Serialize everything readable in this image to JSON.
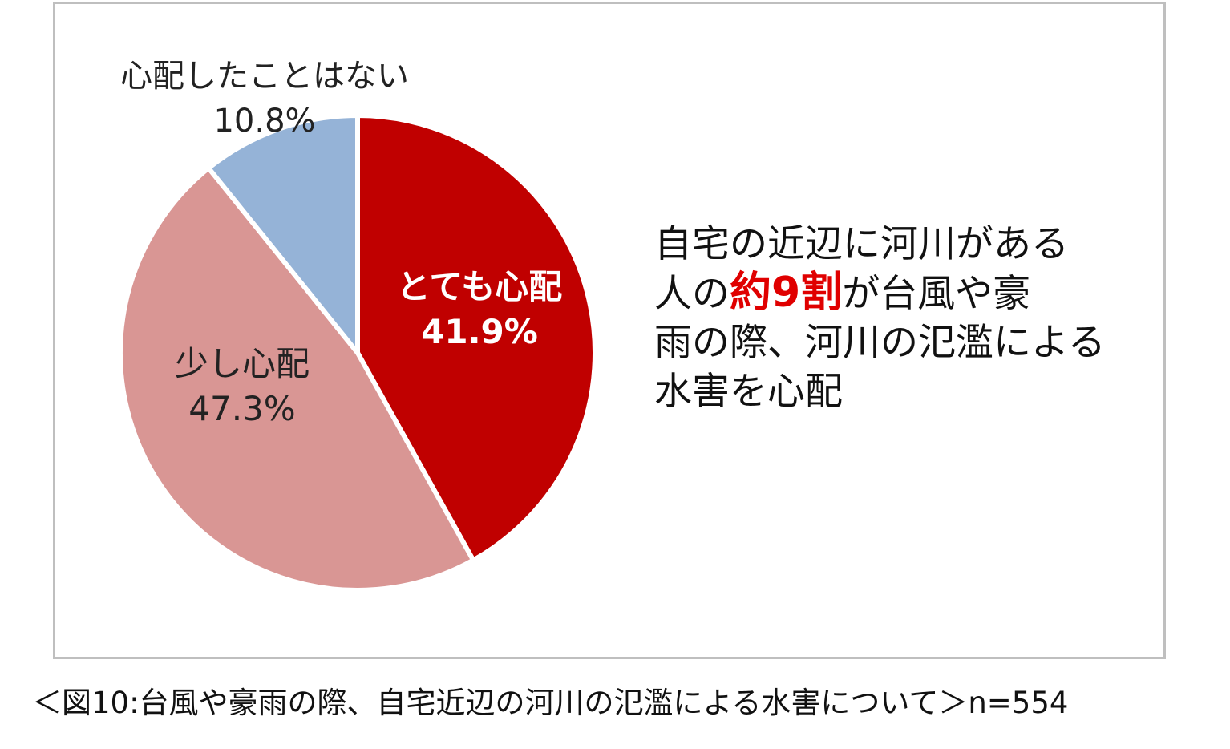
{
  "chart_data": {
    "type": "pie",
    "title": "",
    "slices": [
      {
        "label": "とても心配",
        "value": 41.9,
        "value_label": "41.9%",
        "color": "#c00000",
        "text_color": "#ffffff"
      },
      {
        "label": "少し心配",
        "value": 47.3,
        "value_label": "47.3%",
        "color": "#d99694",
        "text_color": "#222222"
      },
      {
        "label": "心配したことはない",
        "value": 10.8,
        "value_label": "10.8%",
        "color": "#95b3d7",
        "text_color": "#222222"
      }
    ],
    "start_angle": "12 o'clock",
    "direction": "clockwise",
    "legend": "none"
  },
  "callout": {
    "line1": "自宅の近辺に河川がある",
    "line2_pre": "人の",
    "line2_emph": "約9割",
    "line2_post": "が台風や豪",
    "line3": "雨の際、河川の氾濫による",
    "line4": "水害を心配",
    "emph_color": "#e00000"
  },
  "caption": "＜図10:台風や豪雨の際、自宅近辺の河川の氾濫による水害について＞n=554"
}
